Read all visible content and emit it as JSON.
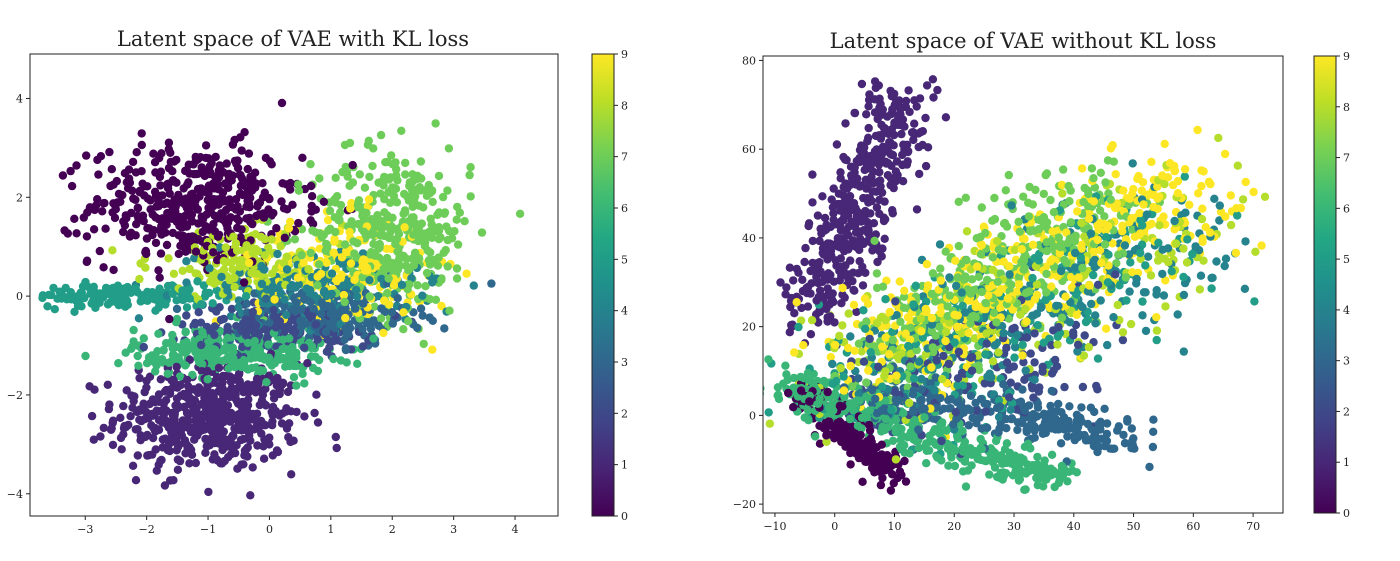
{
  "chart_data": [
    {
      "type": "scatter",
      "title": "Latent space of VAE with KL loss",
      "xlabel": "",
      "ylabel": "",
      "xlim": [
        -3.9,
        4.7
      ],
      "ylim": [
        -4.45,
        4.9
      ],
      "xticks": [
        -3,
        -2,
        -1,
        0,
        1,
        2,
        3,
        4
      ],
      "yticks": [
        -4,
        -2,
        0,
        2,
        4
      ],
      "grid": false,
      "colorbar": {
        "label": "",
        "range": [
          0,
          9
        ],
        "ticks": [
          0,
          1,
          2,
          3,
          4,
          5,
          6,
          7,
          8,
          9
        ],
        "colormap": "viridis"
      },
      "clusters": [
        {
          "class": 1,
          "cx": -1.0,
          "cy": -2.45,
          "sx": 0.75,
          "sy": 0.55,
          "n": 520
        },
        {
          "class": 0,
          "cx": -1.2,
          "cy": 1.85,
          "sx": 0.85,
          "sy": 0.6,
          "n": 450
        },
        {
          "class": 7,
          "cx": 2.0,
          "cy": 1.3,
          "sx": 0.65,
          "sy": 0.85,
          "n": 380
        },
        {
          "class": 9,
          "cx": 1.2,
          "cy": 0.5,
          "sx": 0.7,
          "sy": 0.55,
          "n": 200
        },
        {
          "class": 5,
          "cx": -2.3,
          "cy": 0.0,
          "sx": 0.75,
          "sy": 0.12,
          "n": 150
        },
        {
          "class": 6,
          "cx": -0.6,
          "cy": -1.15,
          "sx": 0.8,
          "sy": 0.25,
          "n": 300
        },
        {
          "class": 2,
          "cx": 0.1,
          "cy": -0.65,
          "sx": 0.8,
          "sy": 0.22,
          "n": 200
        },
        {
          "class": 3,
          "cx": 0.9,
          "cy": -0.4,
          "sx": 0.75,
          "sy": 0.3,
          "n": 200
        },
        {
          "class": 4,
          "cx": 0.6,
          "cy": 0.15,
          "sx": 0.9,
          "sy": 0.35,
          "n": 200
        },
        {
          "class": 8,
          "cx": -0.35,
          "cy": 0.65,
          "sx": 0.8,
          "sy": 0.35,
          "n": 160
        }
      ]
    },
    {
      "type": "scatter",
      "title": "Latent space of VAE without KL loss",
      "xlabel": "",
      "ylabel": "",
      "xlim": [
        -12,
        75
      ],
      "ylim": [
        -22,
        81
      ],
      "xticks": [
        -10,
        0,
        10,
        20,
        30,
        40,
        50,
        60,
        70
      ],
      "yticks": [
        -20,
        0,
        20,
        40,
        60,
        80
      ],
      "grid": false,
      "colorbar": {
        "label": "",
        "range": [
          0,
          9
        ],
        "ticks": [
          0,
          1,
          2,
          3,
          4,
          5,
          6,
          7,
          8,
          9
        ],
        "colormap": "viridis"
      },
      "clusters": [
        {
          "class": 1,
          "t0": [
            -4,
            22
          ],
          "t1": [
            12,
            72
          ],
          "spread": 3.2,
          "n": 420
        },
        {
          "class": 0,
          "t0": [
            -5,
            5
          ],
          "t1": [
            10,
            -14
          ],
          "spread": 1.8,
          "n": 200
        },
        {
          "class": 6,
          "t0": [
            -8,
            7
          ],
          "t1": [
            38,
            -15
          ],
          "spread": 2.5,
          "n": 380
        },
        {
          "class": 3,
          "t0": [
            5,
            6
          ],
          "t1": [
            50,
            -5
          ],
          "spread": 3.0,
          "n": 280
        },
        {
          "class": 9,
          "t0": [
            5,
            12
          ],
          "t1": [
            60,
            50
          ],
          "spread": 6.5,
          "n": 420
        },
        {
          "class": 7,
          "t0": [
            8,
            10
          ],
          "t1": [
            45,
            50
          ],
          "spread": 6.0,
          "n": 360
        },
        {
          "class": 4,
          "t0": [
            10,
            10
          ],
          "t1": [
            62,
            42
          ],
          "spread": 7.0,
          "n": 260
        },
        {
          "class": 8,
          "t0": [
            0,
            5
          ],
          "t1": [
            60,
            45
          ],
          "spread": 7.5,
          "n": 240
        },
        {
          "class": 5,
          "t0": [
            2,
            4
          ],
          "t1": [
            55,
            40
          ],
          "spread": 7.5,
          "n": 200
        },
        {
          "class": 2,
          "t0": [
            6,
            4
          ],
          "t1": [
            42,
            20
          ],
          "spread": 7.0,
          "n": 160
        }
      ]
    }
  ]
}
